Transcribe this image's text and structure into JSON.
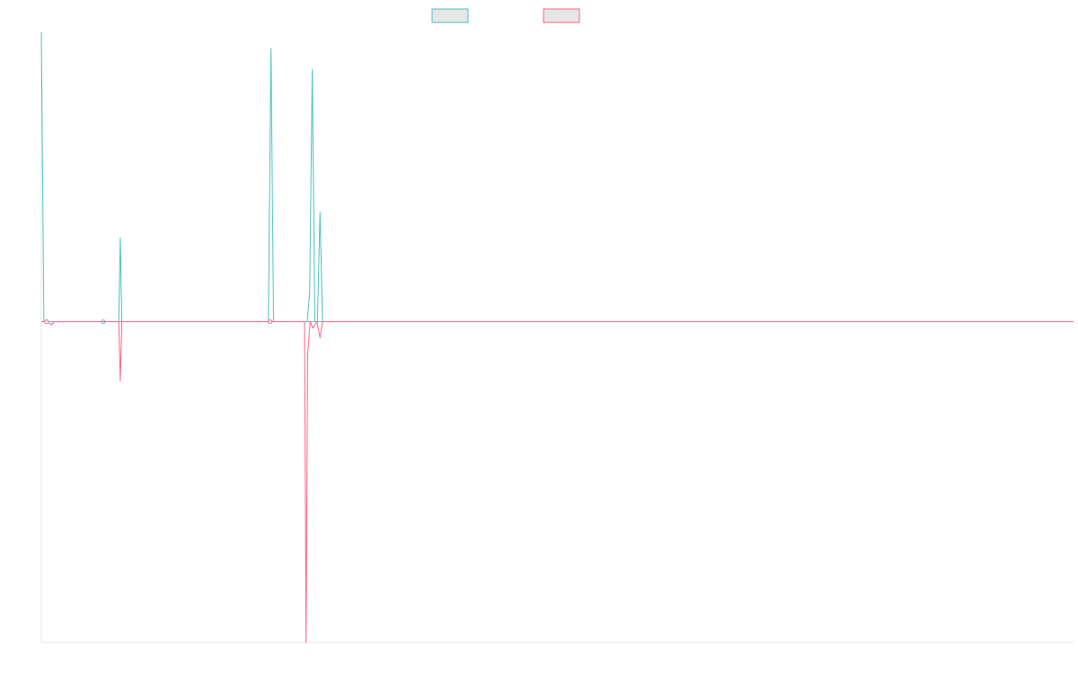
{
  "colors": {
    "series_a": "#4bc0c0",
    "series_b": "#ff6384",
    "axis": "#e6e6e6",
    "background": "#ffffff"
  },
  "chart_data": {
    "type": "line",
    "title": "",
    "xlabel": "",
    "ylabel": "",
    "legend_position": "top-center",
    "grid": false,
    "xlim": [
      0,
      200
    ],
    "ylim": [
      -100,
      90
    ],
    "series": [
      {
        "color": "#4bc0c0",
        "points": [
          [
            0,
            90
          ],
          [
            0.5,
            0
          ],
          [
            2,
            0
          ],
          [
            12,
            0
          ],
          [
            15,
            0
          ],
          [
            15.3,
            26
          ],
          [
            15.6,
            0
          ],
          [
            44,
            0
          ],
          [
            44.5,
            85
          ],
          [
            45,
            0
          ],
          [
            46,
            0
          ],
          [
            51,
            0
          ],
          [
            51.5,
            0
          ],
          [
            52,
            9
          ],
          [
            52.5,
            78.5
          ],
          [
            53,
            0
          ],
          [
            53.5,
            0
          ],
          [
            54,
            34
          ],
          [
            54.5,
            0
          ],
          [
            55,
            0
          ],
          [
            200,
            0
          ]
        ],
        "markers": [
          [
            12,
            0
          ]
        ]
      },
      {
        "color": "#ff6384",
        "points": [
          [
            0,
            0
          ],
          [
            1,
            0
          ],
          [
            2,
            -1
          ],
          [
            2.5,
            0
          ],
          [
            15,
            0
          ],
          [
            15.3,
            -18.5
          ],
          [
            15.6,
            0
          ],
          [
            44,
            0
          ],
          [
            51,
            0
          ],
          [
            51.3,
            -100
          ],
          [
            51.6,
            -10
          ],
          [
            52.1,
            0
          ],
          [
            52.6,
            -2
          ],
          [
            53.4,
            0
          ],
          [
            54,
            -5
          ],
          [
            54.5,
            0
          ],
          [
            55,
            0
          ],
          [
            200,
            0
          ]
        ],
        "markers": [
          [
            1,
            0
          ],
          [
            44.3,
            0
          ]
        ]
      }
    ]
  }
}
